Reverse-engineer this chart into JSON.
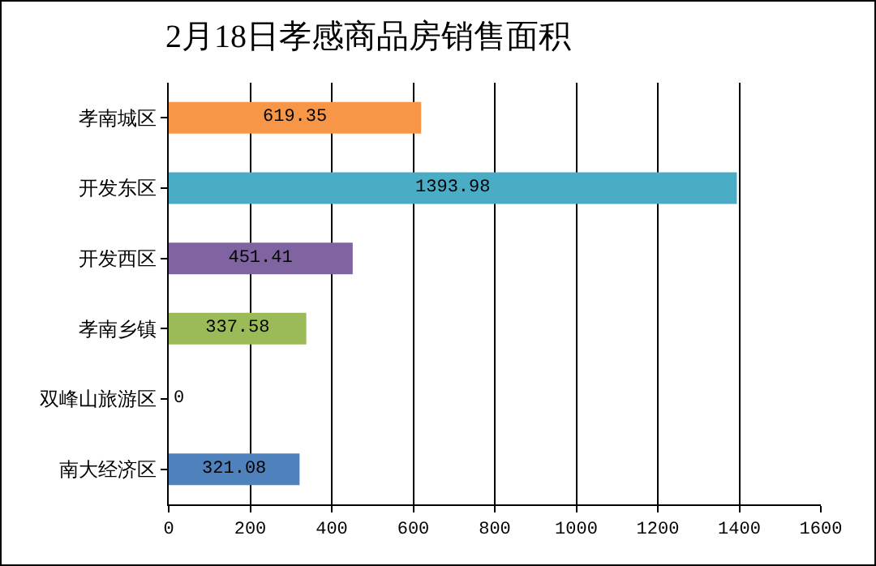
{
  "chart_data": {
    "type": "bar",
    "orientation": "horizontal",
    "title": "2月18日孝感商品房销售面积",
    "categories": [
      "孝南城区",
      "开发东区",
      "开发西区",
      "孝南乡镇",
      "双峰山旅游区",
      "南大经济区"
    ],
    "values": [
      619.35,
      1393.98,
      451.41,
      337.58,
      0,
      321.08
    ],
    "colors": [
      "#f79646",
      "#4bacc6",
      "#8064a2",
      "#9bbb59",
      "#4f81bd",
      "#4f81bd"
    ],
    "xlim": [
      0,
      1600
    ],
    "xticks": [
      0,
      200,
      400,
      600,
      800,
      1000,
      1200,
      1400,
      1600
    ],
    "grid": "x",
    "data_labels": true
  }
}
